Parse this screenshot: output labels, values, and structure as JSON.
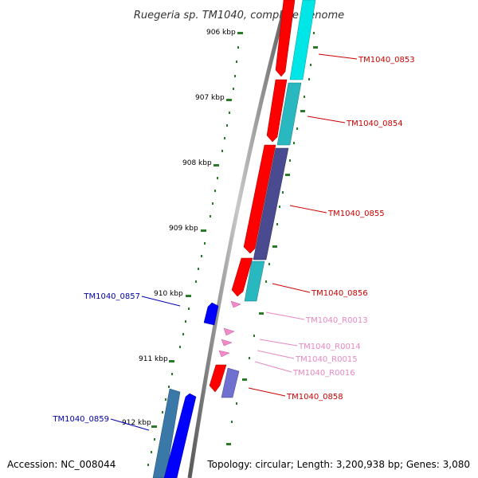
{
  "title": "Ruegeria sp. TM1040, complete genome",
  "accession": "Accession: NC_008044",
  "topology": "Topology: circular; Length: 3,200,938 bp; Genes: 3,080",
  "colors": {
    "backbone": "#8a8a8a",
    "tick": "#2a7a2a",
    "cds_red": "#ff0000",
    "cyan": "#00e5e5",
    "teal": "#2ab8c0",
    "slate": "#4a4a90",
    "blue": "#0000ff",
    "steel": "#3a78a8",
    "lavender": "#7070d0",
    "rna": "#f08ac8",
    "label_red": "#cc0000",
    "label_blue": "#0000aa",
    "label_pink": "#e888c0"
  },
  "ticks": [
    "906 kbp",
    "907 kbp",
    "908 kbp",
    "909 kbp",
    "910 kbp",
    "911 kbp",
    "912 kbp"
  ],
  "gene_labels": [
    {
      "name": "TM1040_0853",
      "color": "label_red"
    },
    {
      "name": "TM1040_0854",
      "color": "label_red"
    },
    {
      "name": "TM1040_0855",
      "color": "label_red"
    },
    {
      "name": "TM1040_0856",
      "color": "label_red"
    },
    {
      "name": "TM1040_R0013",
      "color": "label_pink"
    },
    {
      "name": "TM1040_R0014",
      "color": "label_pink"
    },
    {
      "name": "TM1040_R0015",
      "color": "label_pink"
    },
    {
      "name": "TM1040_R0016",
      "color": "label_pink"
    },
    {
      "name": "TM1040_0858",
      "color": "label_red"
    },
    {
      "name": "TM1040_0857",
      "color": "label_blue"
    },
    {
      "name": "TM1040_0859",
      "color": "label_blue"
    }
  ]
}
